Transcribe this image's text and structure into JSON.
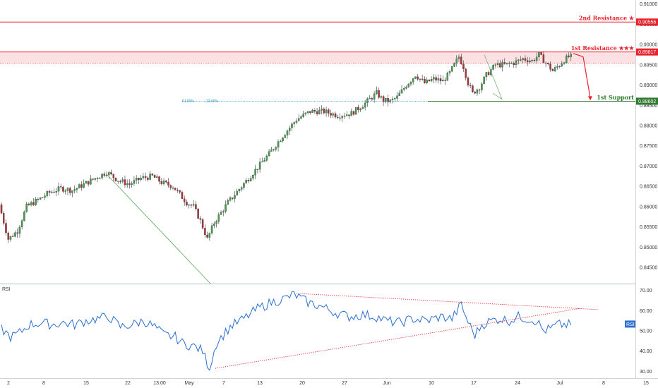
{
  "chart_data": [
    {
      "type": "candlestick",
      "ylim": [
        0.841,
        0.911
      ],
      "y_ticks": [
        "0.91000",
        "0.90500",
        "0.90000",
        "0.89500",
        "0.89000",
        "0.88500",
        "0.88000",
        "0.87500",
        "0.87000",
        "0.86500",
        "0.86000",
        "0.85500",
        "0.85000",
        "0.84500"
      ],
      "x_ticks": [
        "2",
        "8",
        "15",
        "22",
        "13:00",
        "May",
        "7",
        "13",
        "20",
        "27",
        "Jun",
        "10",
        "17",
        "24",
        "Jul",
        "8",
        "15"
      ],
      "levels": [
        {
          "label": "2nd Resistance ★",
          "value": 0.90556,
          "value_text": "0.90556",
          "color": "#e8242f"
        },
        {
          "label": "1st Resistance ★★★",
          "value": 0.89817,
          "value_text": "0.89817",
          "color": "#e8242f"
        },
        {
          "label": "1st Support",
          "value": 0.88602,
          "value_text": "0.88602",
          "color": "#2f7a2f"
        }
      ],
      "fib_labels": [
        "61.80%",
        "23.60%"
      ],
      "anchors": [
        [
          0,
          0.8605
        ],
        [
          4,
          0.852
        ],
        [
          8,
          0.854
        ],
        [
          12,
          0.86
        ],
        [
          18,
          0.862
        ],
        [
          22,
          0.8635
        ],
        [
          27,
          0.8645
        ],
        [
          32,
          0.864
        ],
        [
          37,
          0.8655
        ],
        [
          42,
          0.867
        ],
        [
          47,
          0.8685
        ],
        [
          52,
          0.8665
        ],
        [
          57,
          0.8655
        ],
        [
          62,
          0.867
        ],
        [
          67,
          0.8675
        ],
        [
          71,
          0.866
        ],
        [
          76,
          0.865
        ],
        [
          79,
          0.863
        ],
        [
          82,
          0.861
        ],
        [
          85,
          0.86
        ],
        [
          88,
          0.8565
        ],
        [
          90,
          0.8535
        ],
        [
          91,
          0.852
        ],
        [
          94,
          0.856
        ],
        [
          100,
          0.861
        ],
        [
          106,
          0.865
        ],
        [
          112,
          0.869
        ],
        [
          118,
          0.873
        ],
        [
          124,
          0.8775
        ],
        [
          130,
          0.8815
        ],
        [
          136,
          0.8835
        ],
        [
          142,
          0.8835
        ],
        [
          148,
          0.8825
        ],
        [
          154,
          0.883
        ],
        [
          160,
          0.8855
        ],
        [
          165,
          0.888
        ],
        [
          168,
          0.8862
        ],
        [
          171,
          0.886
        ],
        [
          174,
          0.887
        ],
        [
          178,
          0.89
        ],
        [
          182,
          0.8925
        ],
        [
          186,
          0.8905
        ],
        [
          190,
          0.8915
        ],
        [
          194,
          0.891
        ],
        [
          197,
          0.893
        ],
        [
          201,
          0.897
        ],
        [
          203,
          0.8945
        ],
        [
          205,
          0.8905
        ],
        [
          207,
          0.888
        ],
        [
          210,
          0.8895
        ],
        [
          213,
          0.8925
        ],
        [
          217,
          0.895
        ],
        [
          221,
          0.895
        ],
        [
          225,
          0.8955
        ],
        [
          229,
          0.8965
        ],
        [
          233,
          0.896
        ],
        [
          236,
          0.8975
        ],
        [
          239,
          0.8955
        ],
        [
          242,
          0.8935
        ],
        [
          245,
          0.895
        ],
        [
          247,
          0.8962
        ],
        [
          249,
          0.897
        ]
      ],
      "candle_count": 250
    },
    {
      "type": "line",
      "title": "RSI",
      "ylim": [
        27,
        73
      ],
      "y_ticks": [
        "70.00",
        "60.00",
        "50.00",
        "40.00",
        "30.00"
      ],
      "last_value": "53",
      "anchors": [
        [
          0,
          51
        ],
        [
          4,
          47
        ],
        [
          8,
          49
        ],
        [
          12,
          53
        ],
        [
          18,
          54
        ],
        [
          22,
          53
        ],
        [
          27,
          54
        ],
        [
          32,
          53
        ],
        [
          37,
          55
        ],
        [
          42,
          56
        ],
        [
          47,
          57
        ],
        [
          52,
          52
        ],
        [
          57,
          53
        ],
        [
          62,
          55
        ],
        [
          67,
          52
        ],
        [
          71,
          48
        ],
        [
          76,
          47
        ],
        [
          79,
          44
        ],
        [
          82,
          43
        ],
        [
          85,
          42
        ],
        [
          88,
          40
        ],
        [
          90,
          34
        ],
        [
          91,
          32
        ],
        [
          94,
          44
        ],
        [
          100,
          52
        ],
        [
          106,
          56
        ],
        [
          112,
          61
        ],
        [
          118,
          64
        ],
        [
          124,
          66
        ],
        [
          128,
          68
        ],
        [
          134,
          64
        ],
        [
          140,
          62
        ],
        [
          146,
          59
        ],
        [
          152,
          57
        ],
        [
          158,
          58
        ],
        [
          164,
          57
        ],
        [
          168,
          55
        ],
        [
          174,
          54
        ],
        [
          180,
          56
        ],
        [
          186,
          55
        ],
        [
          192,
          57
        ],
        [
          197,
          56
        ],
        [
          201,
          63
        ],
        [
          203,
          57
        ],
        [
          205,
          52
        ],
        [
          207,
          48
        ],
        [
          210,
          53
        ],
        [
          214,
          55
        ],
        [
          218,
          56
        ],
        [
          222,
          55
        ],
        [
          226,
          57
        ],
        [
          230,
          56
        ],
        [
          234,
          55
        ],
        [
          237,
          50
        ],
        [
          240,
          51
        ],
        [
          243,
          53
        ],
        [
          246,
          53
        ],
        [
          249,
          53
        ]
      ]
    }
  ]
}
